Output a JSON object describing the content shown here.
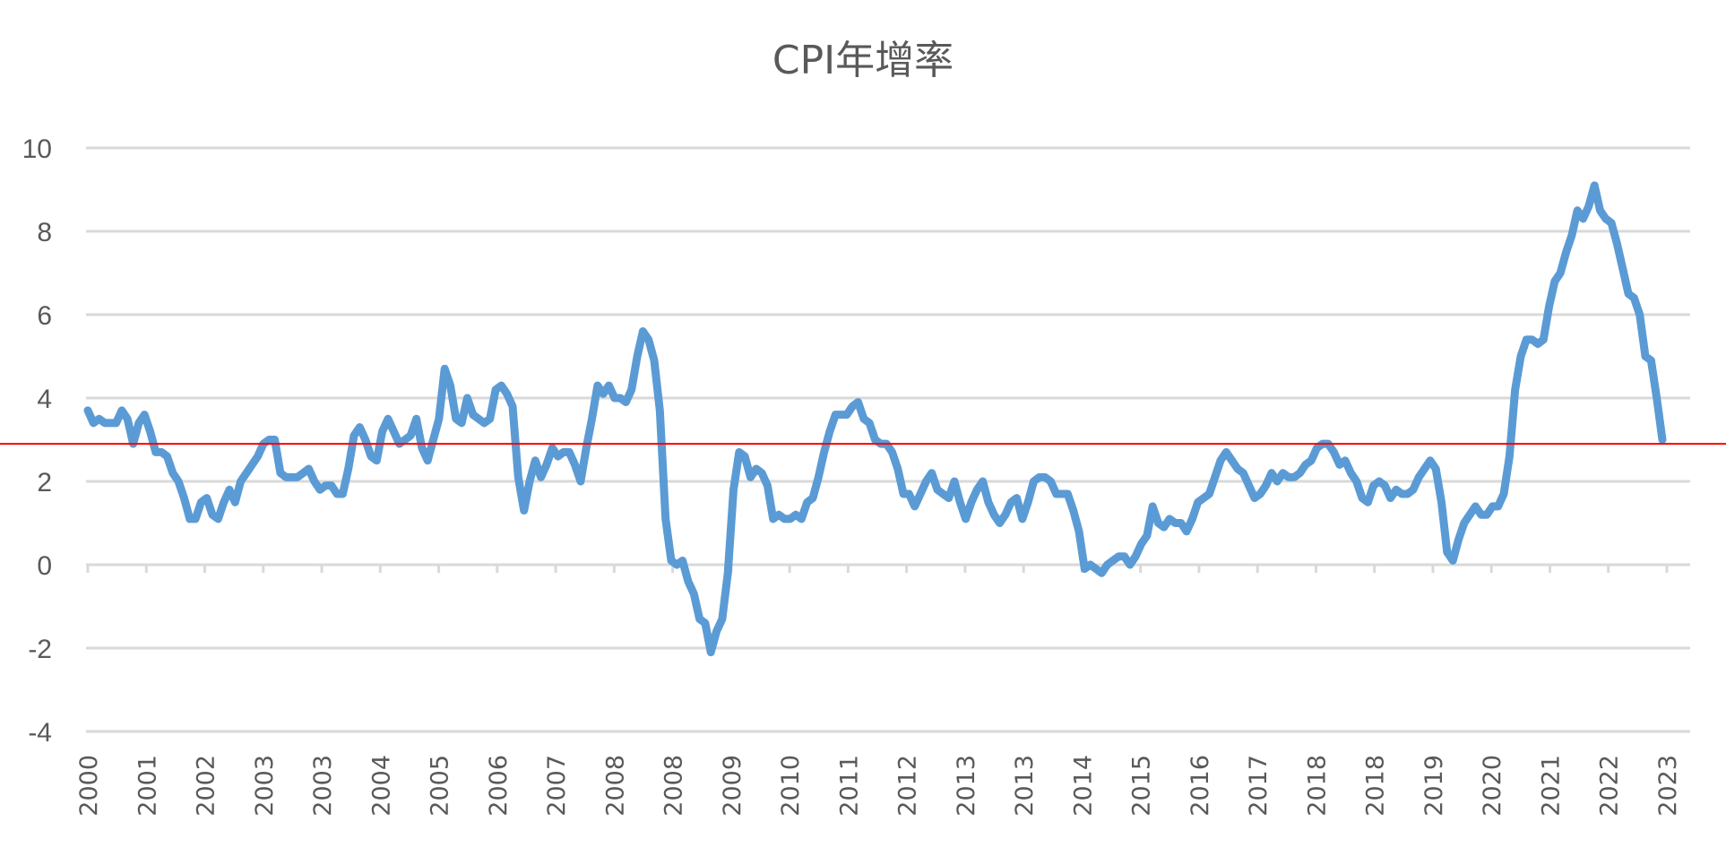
{
  "chart_data": {
    "type": "line",
    "title": "CPI年增率",
    "xlabel": "",
    "ylabel": "",
    "ylim": [
      -4,
      10
    ],
    "yticks": [
      10,
      8,
      6,
      4,
      2,
      0,
      -2,
      -4
    ],
    "grid": true,
    "legend": "none",
    "x_tick_labels": [
      "2000",
      "2001",
      "2002",
      "2003",
      "2003",
      "2004",
      "2005",
      "2006",
      "2007",
      "2008",
      "2008",
      "2009",
      "2010",
      "2011",
      "2012",
      "2013",
      "2013",
      "2014",
      "2015",
      "2016",
      "2017",
      "2018",
      "2018",
      "2019",
      "2020",
      "2021",
      "2022",
      "2023"
    ],
    "reference_line": {
      "value": 2.9,
      "color": "#FF0000"
    },
    "series": [
      {
        "name": "CPI年增率",
        "color": "#5B9BD5",
        "frequency": "monthly",
        "values": [
          3.7,
          3.4,
          3.5,
          3.4,
          3.4,
          3.4,
          3.7,
          3.5,
          2.9,
          3.4,
          3.6,
          3.2,
          2.7,
          2.7,
          2.6,
          2.2,
          2.0,
          1.6,
          1.1,
          1.1,
          1.5,
          1.6,
          1.2,
          1.1,
          1.5,
          1.8,
          1.5,
          2.0,
          2.2,
          2.4,
          2.6,
          2.9,
          3.0,
          3.0,
          2.2,
          2.1,
          2.1,
          2.1,
          2.2,
          2.3,
          2.0,
          1.8,
          1.9,
          1.9,
          1.7,
          1.7,
          2.3,
          3.1,
          3.3,
          3.0,
          2.6,
          2.5,
          3.2,
          3.5,
          3.2,
          2.9,
          3.0,
          3.1,
          3.5,
          2.8,
          2.5,
          3.0,
          3.5,
          4.7,
          4.3,
          3.5,
          3.4,
          4.0,
          3.6,
          3.5,
          3.4,
          3.5,
          4.2,
          4.3,
          4.1,
          3.8,
          2.1,
          1.3,
          2.0,
          2.5,
          2.1,
          2.4,
          2.8,
          2.6,
          2.7,
          2.7,
          2.4,
          2.0,
          2.8,
          3.5,
          4.3,
          4.1,
          4.3,
          4.0,
          4.0,
          3.9,
          4.2,
          5.0,
          5.6,
          5.4,
          4.9,
          3.7,
          1.1,
          0.1,
          0.0,
          0.1,
          -0.4,
          -0.7,
          -1.3,
          -1.4,
          -2.1,
          -1.6,
          -1.3,
          -0.2,
          1.8,
          2.7,
          2.6,
          2.1,
          2.3,
          2.2,
          1.9,
          1.1,
          1.2,
          1.1,
          1.1,
          1.2,
          1.1,
          1.5,
          1.6,
          2.1,
          2.7,
          3.2,
          3.6,
          3.6,
          3.6,
          3.8,
          3.9,
          3.5,
          3.4,
          3.0,
          2.9,
          2.9,
          2.7,
          2.3,
          1.7,
          1.7,
          1.4,
          1.7,
          2.0,
          2.2,
          1.8,
          1.7,
          1.6,
          2.0,
          1.5,
          1.1,
          1.5,
          1.8,
          2.0,
          1.5,
          1.2,
          1.0,
          1.2,
          1.5,
          1.6,
          1.1,
          1.5,
          2.0,
          2.1,
          2.1,
          2.0,
          1.7,
          1.7,
          1.7,
          1.3,
          0.8,
          -0.1,
          0.0,
          -0.1,
          -0.2,
          0.0,
          0.1,
          0.2,
          0.2,
          0.0,
          0.2,
          0.5,
          0.7,
          1.4,
          1.0,
          0.9,
          1.1,
          1.0,
          1.0,
          0.8,
          1.1,
          1.5,
          1.6,
          1.7,
          2.1,
          2.5,
          2.7,
          2.5,
          2.3,
          2.2,
          1.9,
          1.6,
          1.7,
          1.9,
          2.2,
          2.0,
          2.2,
          2.1,
          2.1,
          2.2,
          2.4,
          2.5,
          2.8,
          2.9,
          2.9,
          2.7,
          2.4,
          2.5,
          2.2,
          2.0,
          1.6,
          1.5,
          1.9,
          2.0,
          1.9,
          1.6,
          1.8,
          1.7,
          1.7,
          1.8,
          2.1,
          2.3,
          2.5,
          2.3,
          1.5,
          0.3,
          0.1,
          0.6,
          1.0,
          1.2,
          1.4,
          1.2,
          1.2,
          1.4,
          1.4,
          1.7,
          2.6,
          4.2,
          5.0,
          5.4,
          5.4,
          5.3,
          5.4,
          6.2,
          6.8,
          7.0,
          7.5,
          7.9,
          8.5,
          8.3,
          8.6,
          9.1,
          8.5,
          8.3,
          8.2,
          7.7,
          7.1,
          6.5,
          6.4,
          6.0,
          5.0,
          4.9,
          4.0,
          3.0
        ]
      }
    ]
  }
}
